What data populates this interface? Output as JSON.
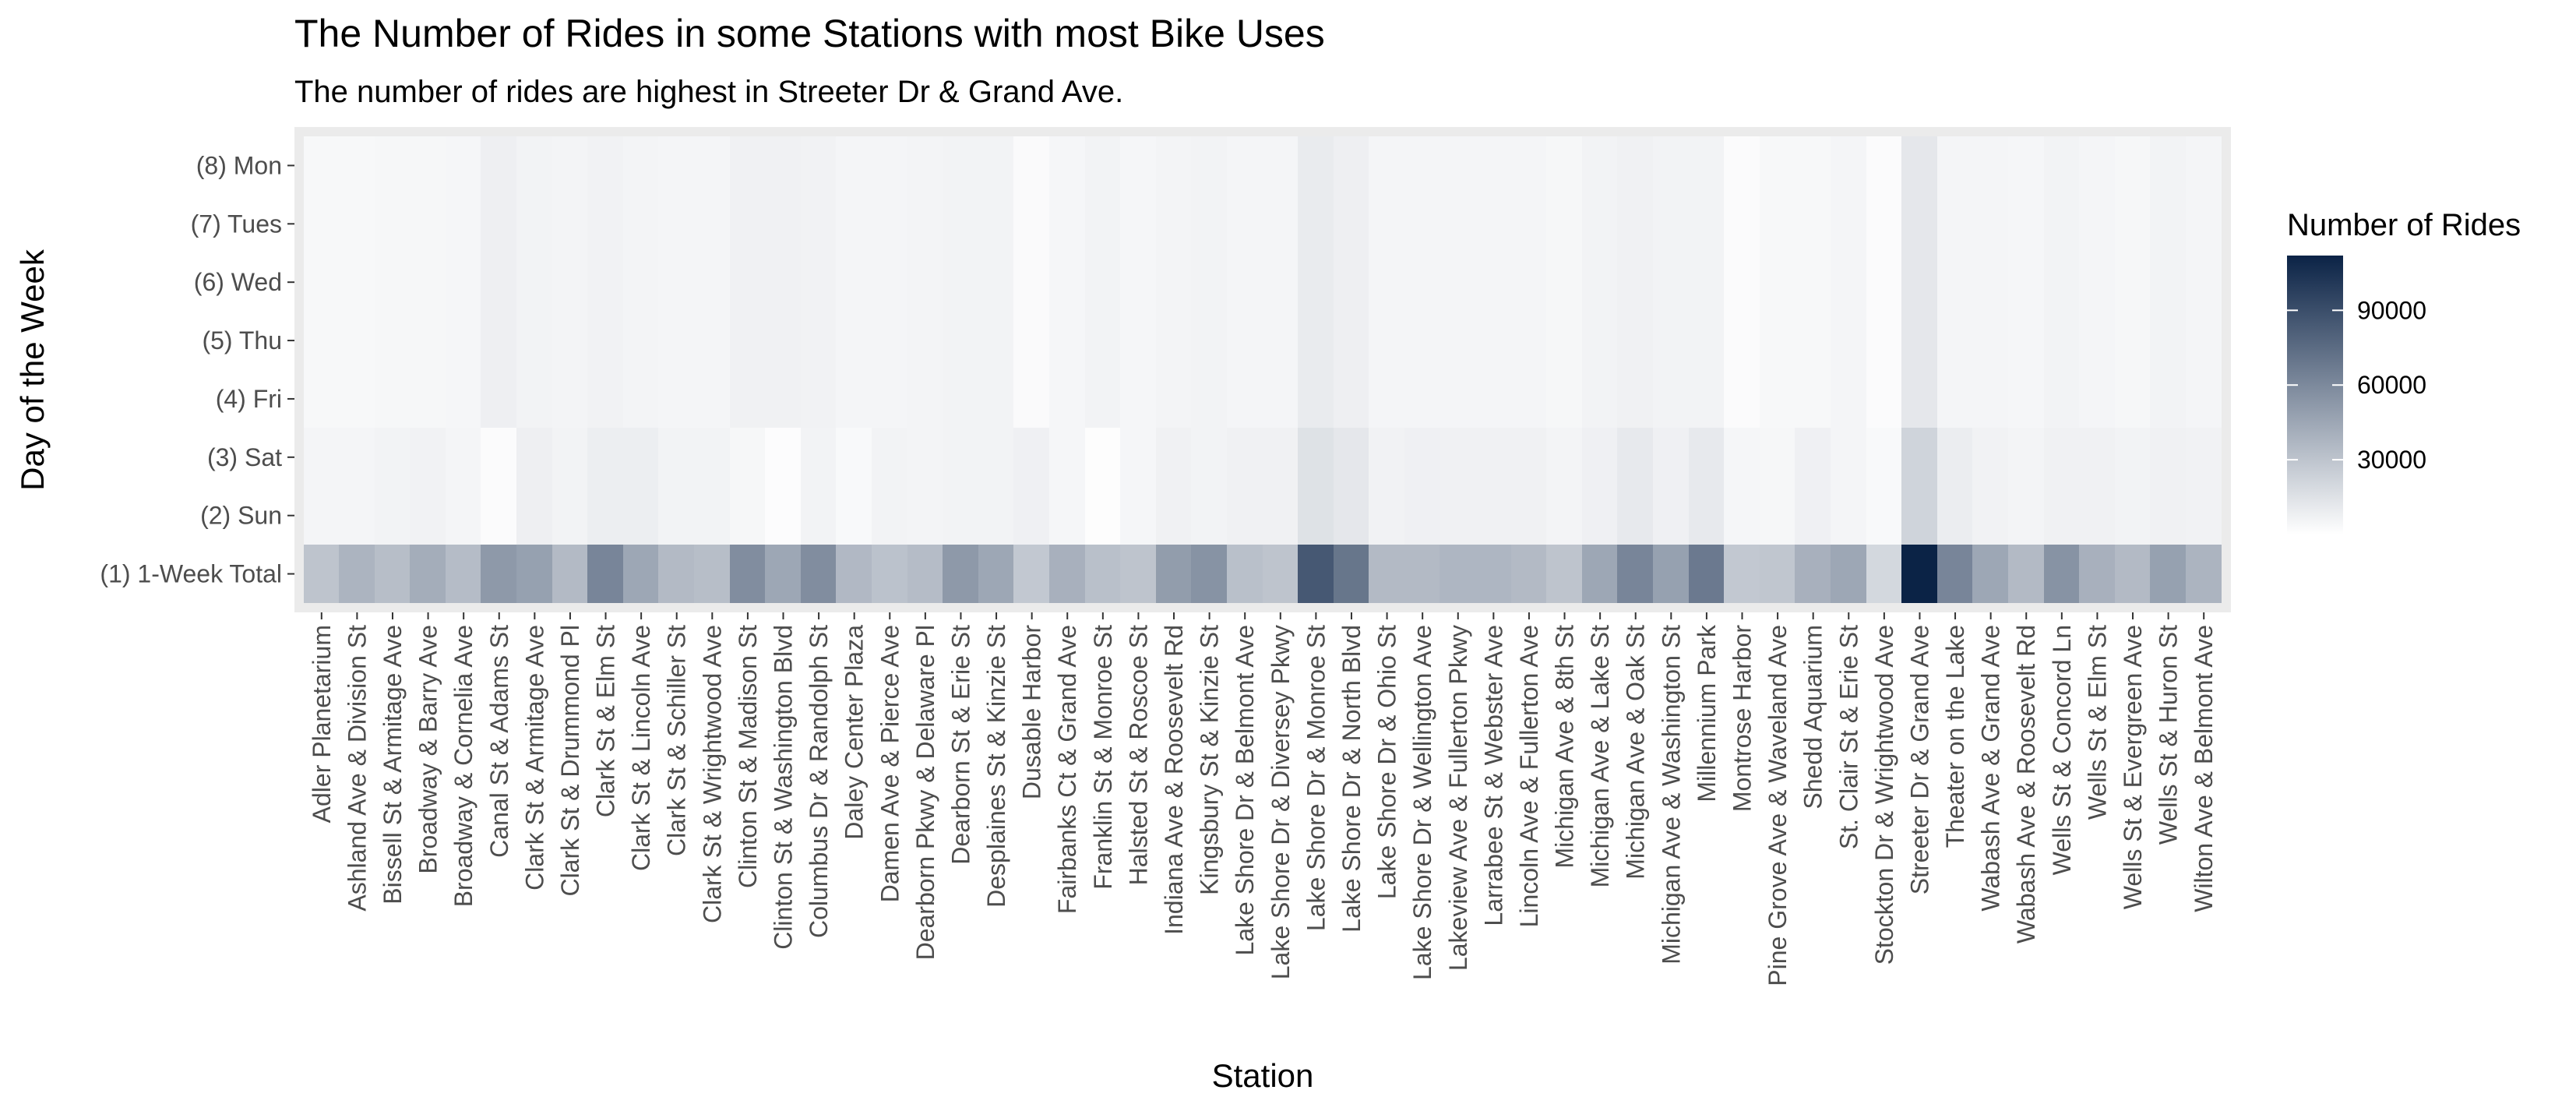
{
  "chart_data": {
    "type": "heatmap",
    "title": "The Number of Rides in some Stations with most Bike Uses",
    "subtitle": "The number of rides are highest in Streeter Dr & Grand Ave.",
    "xlabel": "Station",
    "ylabel": "Day of the Week",
    "legend_title": "Number of Rides",
    "legend_position": "right",
    "color_low": "#ffffff",
    "color_high": "#0b2346",
    "value_range": [
      0,
      112000
    ],
    "legend_breaks": [
      30000,
      60000,
      90000
    ],
    "legend_labels": [
      "30000",
      "60000",
      "90000"
    ],
    "panel_background": "#ebebeb",
    "grid": true,
    "y_categories": [
      "(8) Mon",
      "(7) Tues",
      "(6) Wed",
      "(5) Thu",
      "(4) Fri",
      "(3) Sat",
      "(2) Sun",
      "(1) 1-Week Total"
    ],
    "stations": [
      "Adler Planetarium",
      "Ashland Ave & Division St",
      "Bissell St & Armitage Ave",
      "Broadway & Barry Ave",
      "Broadway & Cornelia Ave",
      "Canal St & Adams St",
      "Clark St & Armitage Ave",
      "Clark St & Drummond Pl",
      "Clark St & Elm St",
      "Clark St & Lincoln Ave",
      "Clark St & Schiller St",
      "Clark St & Wrightwood Ave",
      "Clinton St & Madison St",
      "Clinton St & Washington Blvd",
      "Columbus Dr & Randolph St",
      "Daley Center Plaza",
      "Damen Ave & Pierce Ave",
      "Dearborn Pkwy & Delaware Pl",
      "Dearborn St & Erie St",
      "Desplaines St & Kinzie St",
      "Dusable Harbor",
      "Fairbanks Ct & Grand Ave",
      "Franklin St & Monroe St",
      "Halsted St & Roscoe St",
      "Indiana Ave & Roosevelt Rd",
      "Kingsbury St & Kinzie St",
      "Lake Shore Dr & Belmont Ave",
      "Lake Shore Dr & Diversey Pkwy",
      "Lake Shore Dr & Monroe St",
      "Lake Shore Dr & North Blvd",
      "Lake Shore Dr & Ohio St",
      "Lake Shore Dr & Wellington Ave",
      "Lakeview Ave & Fullerton Pkwy",
      "Larrabee St & Webster Ave",
      "Lincoln Ave & Fullerton Ave",
      "Michigan Ave & 8th St",
      "Michigan Ave & Lake St",
      "Michigan Ave & Oak St",
      "Michigan Ave & Washington St",
      "Millennium Park",
      "Montrose Harbor",
      "Pine Grove Ave & Waveland Ave",
      "Shedd Aquarium",
      "St. Clair St & Erie St",
      "Stockton Dr & Wrightwood Ave",
      "Streeter Dr & Grand Ave",
      "Theater on the Lake",
      "Wabash Ave & Grand Ave",
      "Wabash Ave & Roosevelt Rd",
      "Wells St & Concord Ln",
      "Wells St & Elm St",
      "Wells St & Evergreen Ave",
      "Wells St & Huron St",
      "Wilton Ave & Belmont Ave"
    ],
    "values": [
      [
        3500,
        3500,
        4000,
        4000,
        4500,
        8000,
        6000,
        5500,
        6500,
        5500,
        5000,
        5000,
        7000,
        7000,
        6500,
        5000,
        5000,
        5500,
        6000,
        6000,
        2500,
        4500,
        6000,
        4500,
        5500,
        6000,
        5000,
        5000,
        10000,
        8000,
        5000,
        5000,
        5000,
        5000,
        5000,
        4000,
        6000,
        7000,
        6000,
        6000,
        2000,
        3500,
        3500,
        5000,
        2000,
        12000,
        5000,
        5000,
        4500,
        6000,
        5000,
        4000,
        6000,
        5000
      ],
      [
        3500,
        3500,
        4000,
        4000,
        4500,
        8000,
        6000,
        5500,
        6500,
        5500,
        5000,
        5000,
        7000,
        7000,
        6500,
        5000,
        5000,
        5500,
        6000,
        6000,
        2500,
        4500,
        6000,
        4500,
        5500,
        6000,
        5000,
        5000,
        10000,
        8000,
        5000,
        5000,
        5000,
        5000,
        5000,
        4000,
        6000,
        7000,
        6000,
        6000,
        2000,
        3500,
        3500,
        5000,
        2000,
        12000,
        5000,
        5000,
        4500,
        6000,
        5000,
        4000,
        6000,
        5000
      ],
      [
        3500,
        3500,
        4000,
        4000,
        4500,
        8000,
        6000,
        5500,
        6500,
        5500,
        5000,
        5000,
        7000,
        7000,
        6500,
        5000,
        5000,
        5500,
        6000,
        6000,
        2500,
        4500,
        6000,
        4500,
        5500,
        6000,
        5000,
        5000,
        10000,
        8000,
        5000,
        5000,
        5000,
        5000,
        5000,
        4000,
        6000,
        7000,
        6000,
        6000,
        2000,
        3500,
        3500,
        5000,
        2000,
        12000,
        5000,
        5000,
        4500,
        6000,
        5000,
        4000,
        6000,
        5000
      ],
      [
        3500,
        3500,
        4000,
        4000,
        4500,
        8000,
        6000,
        5500,
        6500,
        5500,
        5000,
        5000,
        7000,
        7000,
        6500,
        5000,
        5000,
        5500,
        6000,
        6000,
        2500,
        4500,
        6000,
        4500,
        5500,
        6000,
        5000,
        5000,
        10000,
        8000,
        5000,
        5000,
        5000,
        5000,
        5000,
        4000,
        6000,
        7000,
        6000,
        6000,
        2000,
        3500,
        3500,
        5000,
        2000,
        12000,
        5000,
        5000,
        4500,
        6000,
        5000,
        4000,
        6000,
        5000
      ],
      [
        3500,
        3500,
        4000,
        4000,
        4500,
        8000,
        6000,
        5500,
        6500,
        5500,
        5000,
        5000,
        7000,
        7000,
        6500,
        5000,
        5000,
        5500,
        6000,
        6000,
        2500,
        4500,
        6000,
        4500,
        5500,
        6000,
        5000,
        5000,
        10000,
        8000,
        5000,
        5000,
        5000,
        5000,
        5000,
        4000,
        6000,
        7000,
        6000,
        6000,
        2000,
        3500,
        3500,
        5000,
        2000,
        12000,
        5000,
        5000,
        4500,
        6000,
        5000,
        4000,
        6000,
        5000
      ],
      [
        5000,
        5000,
        6000,
        6500,
        5000,
        2000,
        8000,
        6000,
        8500,
        8500,
        6000,
        6000,
        4000,
        1500,
        6000,
        3000,
        6000,
        5500,
        6000,
        6000,
        7500,
        4500,
        1000,
        4500,
        7000,
        6000,
        7000,
        7000,
        15000,
        12000,
        6500,
        7500,
        7000,
        7000,
        7000,
        5500,
        7500,
        11000,
        7500,
        11000,
        4500,
        4000,
        7500,
        5000,
        3000,
        22000,
        9000,
        6500,
        5500,
        7000,
        7000,
        6000,
        7000,
        6500
      ],
      [
        5000,
        5000,
        6000,
        6500,
        5000,
        2000,
        8000,
        6000,
        8500,
        8500,
        6000,
        6000,
        4000,
        1500,
        6000,
        3000,
        6000,
        5500,
        6000,
        6000,
        7500,
        4500,
        1000,
        4500,
        7000,
        6000,
        7000,
        7000,
        15000,
        12000,
        6500,
        7500,
        7000,
        7000,
        7000,
        5500,
        7500,
        11000,
        7500,
        11000,
        4500,
        4000,
        7500,
        5000,
        3000,
        22000,
        9000,
        6500,
        5500,
        7000,
        7000,
        6000,
        7000,
        6500
      ],
      [
        30000,
        38000,
        33000,
        42000,
        34000,
        52000,
        48000,
        35000,
        62000,
        45000,
        35000,
        33000,
        58000,
        45000,
        58000,
        36000,
        31000,
        34000,
        52000,
        45000,
        28000,
        40000,
        32000,
        30000,
        50000,
        55000,
        32000,
        30000,
        85000,
        70000,
        35000,
        35000,
        37000,
        37000,
        35000,
        30000,
        45000,
        62000,
        48000,
        68000,
        28000,
        29000,
        40000,
        45000,
        20000,
        112000,
        62000,
        45000,
        35000,
        55000,
        40000,
        35000,
        48000,
        38000
      ]
    ]
  }
}
